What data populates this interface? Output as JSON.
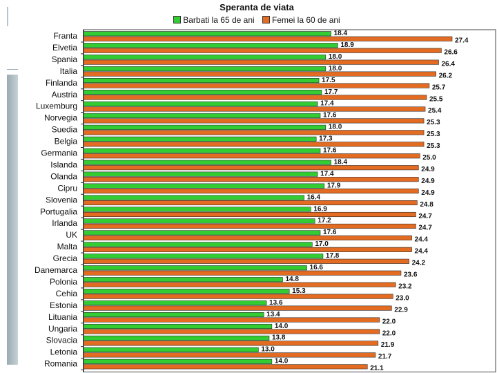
{
  "chart_data": {
    "type": "bar",
    "orientation": "horizontal",
    "title": "Speranta de viata",
    "legend_position": "top",
    "xlim": [
      0,
      27.4
    ],
    "categories": [
      "Franta",
      "Elvetia",
      "Spania",
      "Italia",
      "Finlanda",
      "Austria",
      "Luxemburg",
      "Norvegia",
      "Suedia",
      "Belgia",
      "Germania",
      "Islanda",
      "Olanda",
      "Cipru",
      "Slovenia",
      "Portugalia",
      "Irlanda",
      "UK",
      "Malta",
      "Grecia",
      "Danemarca",
      "Polonia",
      "Cehia",
      "Estonia",
      "Lituania",
      "Ungaria",
      "Slovacia",
      "Letonia",
      "Romania"
    ],
    "series": [
      {
        "name": "Barbati la 65 de ani",
        "color": "#33cc33",
        "values": [
          18.4,
          18.9,
          18.0,
          18.0,
          17.5,
          17.7,
          17.4,
          17.6,
          18.0,
          17.3,
          17.6,
          18.4,
          17.4,
          17.9,
          16.4,
          16.9,
          17.2,
          17.6,
          17.0,
          17.8,
          16.6,
          14.8,
          15.3,
          13.6,
          13.4,
          14.0,
          13.8,
          13.0,
          14.0
        ],
        "labels": [
          "18.4",
          "18.9",
          "18.0",
          "18.0",
          "17.5",
          "17.7",
          "17.4",
          "17.6",
          "18.0",
          "17.3",
          "17.6",
          "18.4",
          "17.4",
          "17.9",
          "16.4",
          "16.9",
          "17.2",
          "17.6",
          "17.0",
          "17.8",
          "16.6",
          "14.8",
          "15.3",
          "13.6",
          "13.4",
          "14.0",
          "13.8",
          "13.0",
          "14.0"
        ]
      },
      {
        "name": "Femei la 60 de ani",
        "color": "#e36c22",
        "values": [
          27.4,
          26.6,
          26.4,
          26.2,
          25.7,
          25.5,
          25.4,
          25.3,
          25.3,
          25.3,
          25.0,
          24.9,
          24.9,
          24.9,
          24.8,
          24.7,
          24.7,
          24.4,
          24.4,
          24.2,
          23.6,
          23.2,
          23.0,
          22.9,
          22.0,
          22.0,
          21.9,
          21.7,
          21.1
        ],
        "labels": [
          "27.4",
          "26.6",
          "26.4",
          "26.2",
          "25.7",
          "25.5",
          "25.4",
          "25.3",
          "25.3",
          "25.3",
          "25.0",
          "24.9",
          "24.9",
          "24.9",
          "24.8",
          "24.7",
          "24.7",
          "24.4",
          "24.4",
          "24.2",
          "23.6",
          "23.2",
          "23.0",
          "22.9",
          "22.0",
          "22.0",
          "21.9",
          "21.7",
          "21.1"
        ]
      }
    ]
  }
}
